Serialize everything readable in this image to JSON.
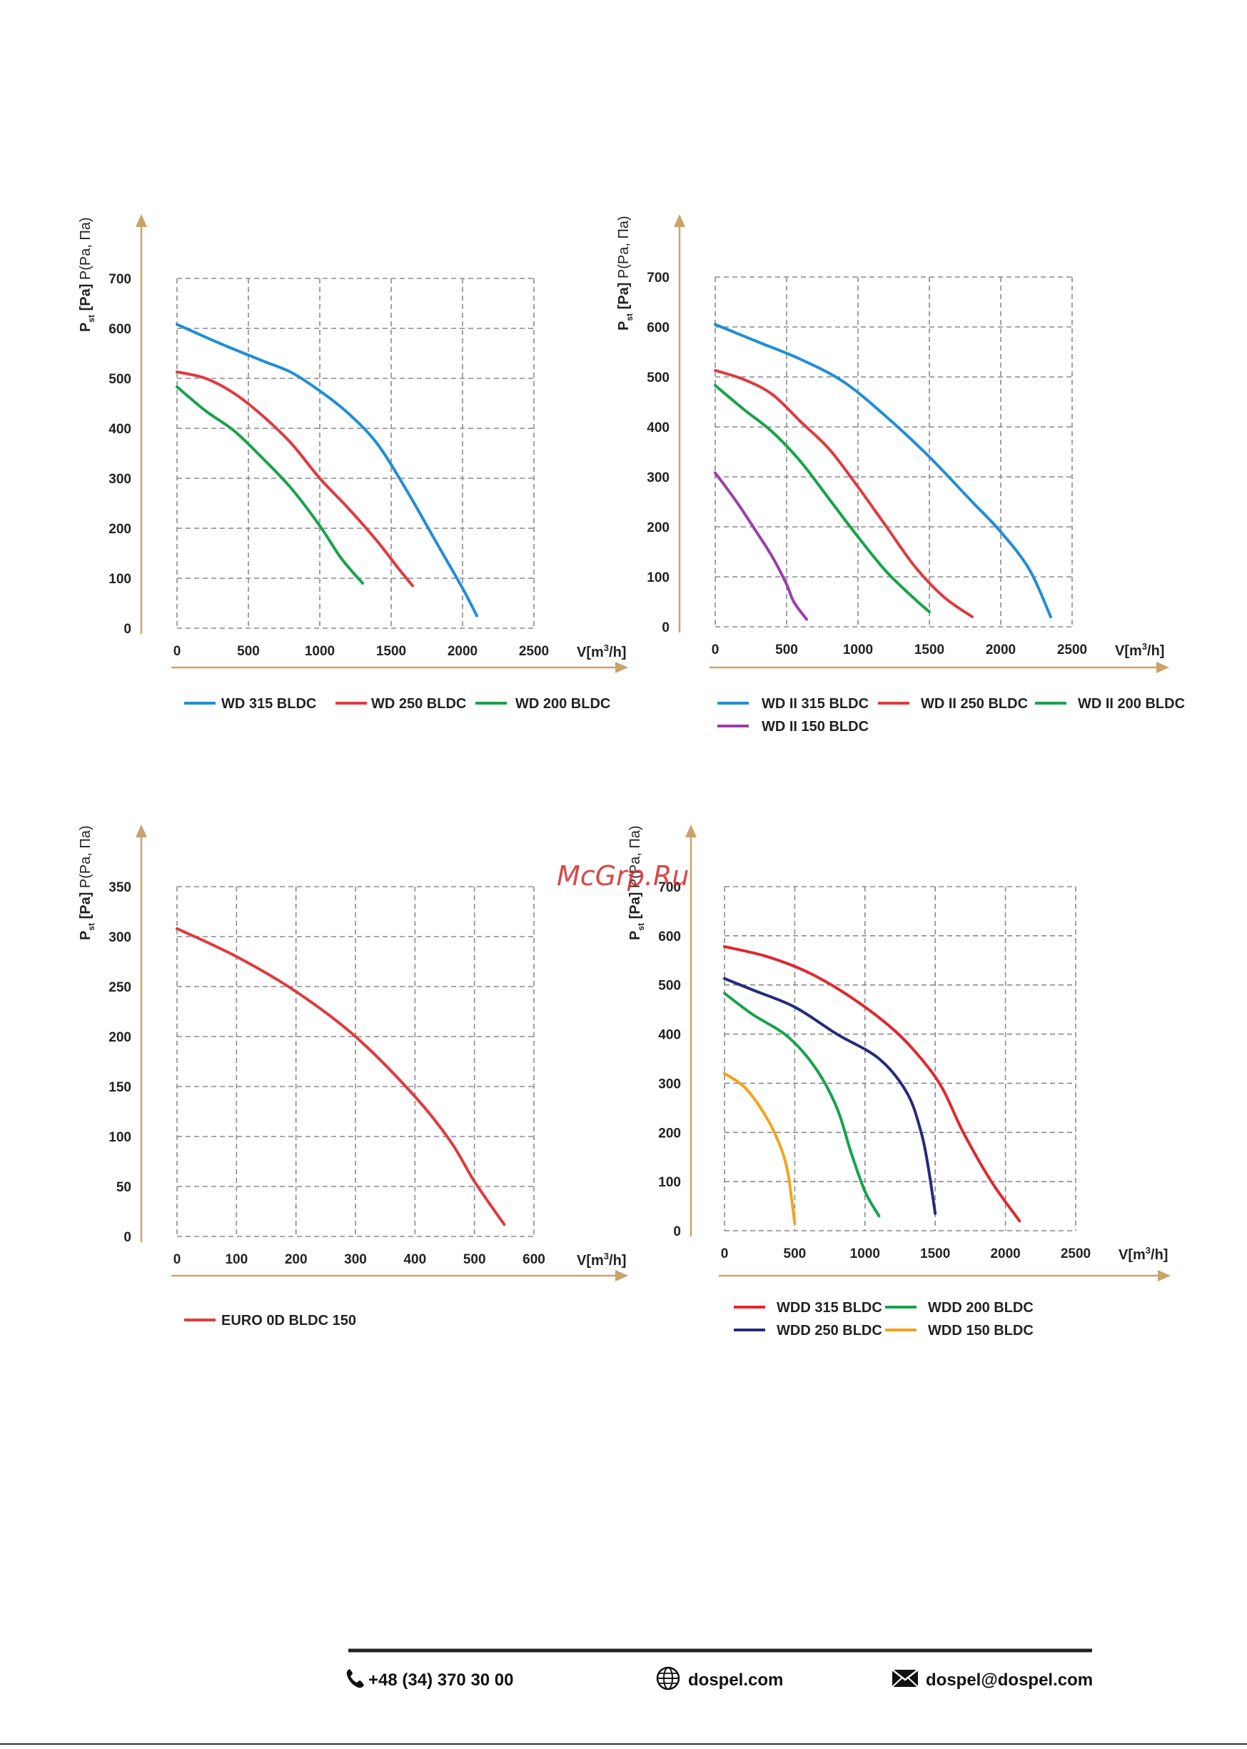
{
  "watermark": "McGrp.Ru",
  "footer": {
    "phone": "+48 (34) 370 30 00",
    "website": "dospel.com",
    "email": "dospel@dospel.com",
    "phone_icon": "phone-icon",
    "globe_icon": "globe-icon",
    "mail_icon": "mail-icon"
  },
  "colors": {
    "arrow": "#c9a36a",
    "grid": "#8a8a8a"
  },
  "chart_data": [
    {
      "type": "line",
      "ylabel_main": "P",
      "ylabel_sub": "st",
      "ylabel_unit": "[Pa]",
      "ylabel_extra": "P(Pa, Па)",
      "xlabel_main": "V[m",
      "xlabel_sup": "3",
      "xlabel_end": "/h]",
      "xlim": [
        0,
        2500
      ],
      "ylim": [
        0,
        700
      ],
      "xticks": [
        0,
        500,
        1000,
        1500,
        2000,
        2500
      ],
      "yticks": [
        0,
        100,
        200,
        300,
        400,
        500,
        600,
        700
      ],
      "grid": true,
      "legend_position": "bottom",
      "series": [
        {
          "name": "WD 315 BLDC",
          "color": "#1f8ed8",
          "points": [
            [
              0,
              608
            ],
            [
              300,
              570
            ],
            [
              600,
              535
            ],
            [
              800,
              512
            ],
            [
              1000,
              475
            ],
            [
              1200,
              430
            ],
            [
              1400,
              370
            ],
            [
              1600,
              280
            ],
            [
              1800,
              180
            ],
            [
              2000,
              80
            ],
            [
              2100,
              25
            ]
          ]
        },
        {
          "name": "WD 250 BLDC",
          "color": "#e03a3e",
          "points": [
            [
              0,
              513
            ],
            [
              200,
              500
            ],
            [
              400,
              470
            ],
            [
              600,
              425
            ],
            [
              800,
              370
            ],
            [
              1000,
              300
            ],
            [
              1200,
              240
            ],
            [
              1400,
              175
            ],
            [
              1550,
              120
            ],
            [
              1650,
              85
            ]
          ]
        },
        {
          "name": "WD 200 BLDC",
          "color": "#17a34a",
          "points": [
            [
              0,
              483
            ],
            [
              200,
              435
            ],
            [
              400,
              395
            ],
            [
              600,
              340
            ],
            [
              800,
              280
            ],
            [
              1000,
              205
            ],
            [
              1150,
              140
            ],
            [
              1300,
              90
            ]
          ]
        }
      ]
    },
    {
      "type": "line",
      "ylabel_main": "P",
      "ylabel_sub": "st",
      "ylabel_unit": "[Pa]",
      "ylabel_extra": "P(Pa, Па)",
      "xlabel_main": "V[m",
      "xlabel_sup": "3",
      "xlabel_end": "/h]",
      "xlim": [
        0,
        2500
      ],
      "ylim": [
        0,
        700
      ],
      "xticks": [
        0,
        500,
        1000,
        1500,
        2000,
        2500
      ],
      "yticks": [
        0,
        100,
        200,
        300,
        400,
        500,
        600,
        700
      ],
      "grid": true,
      "legend_position": "bottom",
      "series": [
        {
          "name": "WD II 315 BLDC",
          "color": "#1f8ed8",
          "points": [
            [
              0,
              605
            ],
            [
              300,
              570
            ],
            [
              600,
              535
            ],
            [
              900,
              490
            ],
            [
              1200,
              420
            ],
            [
              1500,
              340
            ],
            [
              1800,
              250
            ],
            [
              2000,
              190
            ],
            [
              2200,
              115
            ],
            [
              2350,
              20
            ]
          ]
        },
        {
          "name": "WD II 250 BLDC",
          "color": "#e03a3e",
          "points": [
            [
              0,
              513
            ],
            [
              200,
              495
            ],
            [
              400,
              465
            ],
            [
              600,
              410
            ],
            [
              800,
              355
            ],
            [
              1000,
              280
            ],
            [
              1200,
              200
            ],
            [
              1400,
              120
            ],
            [
              1600,
              60
            ],
            [
              1800,
              20
            ]
          ]
        },
        {
          "name": "WD II 200 BLDC",
          "color": "#17a34a",
          "points": [
            [
              0,
              483
            ],
            [
              200,
              435
            ],
            [
              400,
              390
            ],
            [
              600,
              330
            ],
            [
              800,
              255
            ],
            [
              1000,
              180
            ],
            [
              1200,
              110
            ],
            [
              1400,
              55
            ],
            [
              1500,
              30
            ]
          ]
        },
        {
          "name": "WD II 150 BLDC",
          "color": "#9b3ea8",
          "points": [
            [
              0,
              308
            ],
            [
              150,
              250
            ],
            [
              300,
              185
            ],
            [
              400,
              140
            ],
            [
              500,
              85
            ],
            [
              550,
              50
            ],
            [
              640,
              15
            ]
          ]
        }
      ]
    },
    {
      "type": "line",
      "ylabel_main": "P",
      "ylabel_sub": "st",
      "ylabel_unit": "[Pa]",
      "ylabel_extra": "P(Pa, Па)",
      "xlabel_main": "V[m",
      "xlabel_sup": "3",
      "xlabel_end": "/h]",
      "xlim": [
        0,
        600
      ],
      "ylim": [
        0,
        350
      ],
      "xticks": [
        0,
        100,
        200,
        300,
        400,
        500,
        600
      ],
      "yticks": [
        0,
        50,
        100,
        150,
        200,
        250,
        300,
        350
      ],
      "grid": true,
      "legend_position": "bottom",
      "series": [
        {
          "name": "EURO 0D BLDC 150",
          "color": "#e03a3e",
          "points": [
            [
              0,
              308
            ],
            [
              100,
              280
            ],
            [
              200,
              245
            ],
            [
              300,
              200
            ],
            [
              400,
              140
            ],
            [
              460,
              95
            ],
            [
              500,
              55
            ],
            [
              550,
              12
            ]
          ]
        }
      ]
    },
    {
      "type": "line",
      "ylabel_main": "P",
      "ylabel_sub": "st",
      "ylabel_unit": "[Pa]",
      "ylabel_extra": "P(Pa, Па)",
      "xlabel_main": "V[m",
      "xlabel_sup": "3",
      "xlabel_end": "/h]",
      "xlim": [
        0,
        2500
      ],
      "ylim": [
        0,
        700
      ],
      "xticks": [
        0,
        500,
        1000,
        1500,
        2000,
        2500
      ],
      "yticks": [
        0,
        100,
        200,
        300,
        400,
        500,
        600,
        700
      ],
      "grid": true,
      "legend_position": "bottom",
      "series": [
        {
          "name": "WDD 315 BLDC",
          "color": "#e0282e",
          "points": [
            [
              0,
              578
            ],
            [
              300,
              558
            ],
            [
              600,
              525
            ],
            [
              900,
              475
            ],
            [
              1200,
              410
            ],
            [
              1400,
              350
            ],
            [
              1550,
              290
            ],
            [
              1700,
              200
            ],
            [
              1900,
              100
            ],
            [
              2100,
              20
            ]
          ]
        },
        {
          "name": "WDD 250 BLDC",
          "color": "#262a7c",
          "points": [
            [
              0,
              513
            ],
            [
              200,
              490
            ],
            [
              500,
              455
            ],
            [
              800,
              400
            ],
            [
              1100,
              350
            ],
            [
              1300,
              280
            ],
            [
              1400,
              200
            ],
            [
              1450,
              130
            ],
            [
              1500,
              35
            ]
          ]
        },
        {
          "name": "WDD 200 BLDC",
          "color": "#17a34a",
          "points": [
            [
              0,
              483
            ],
            [
              200,
              440
            ],
            [
              450,
              395
            ],
            [
              650,
              330
            ],
            [
              800,
              250
            ],
            [
              900,
              160
            ],
            [
              1000,
              80
            ],
            [
              1100,
              30
            ]
          ]
        },
        {
          "name": "WDD 150 BLDC",
          "color": "#f5a21f",
          "points": [
            [
              0,
              320
            ],
            [
              150,
              290
            ],
            [
              300,
              230
            ],
            [
              400,
              170
            ],
            [
              450,
              120
            ],
            [
              480,
              60
            ],
            [
              500,
              15
            ]
          ]
        }
      ]
    }
  ]
}
